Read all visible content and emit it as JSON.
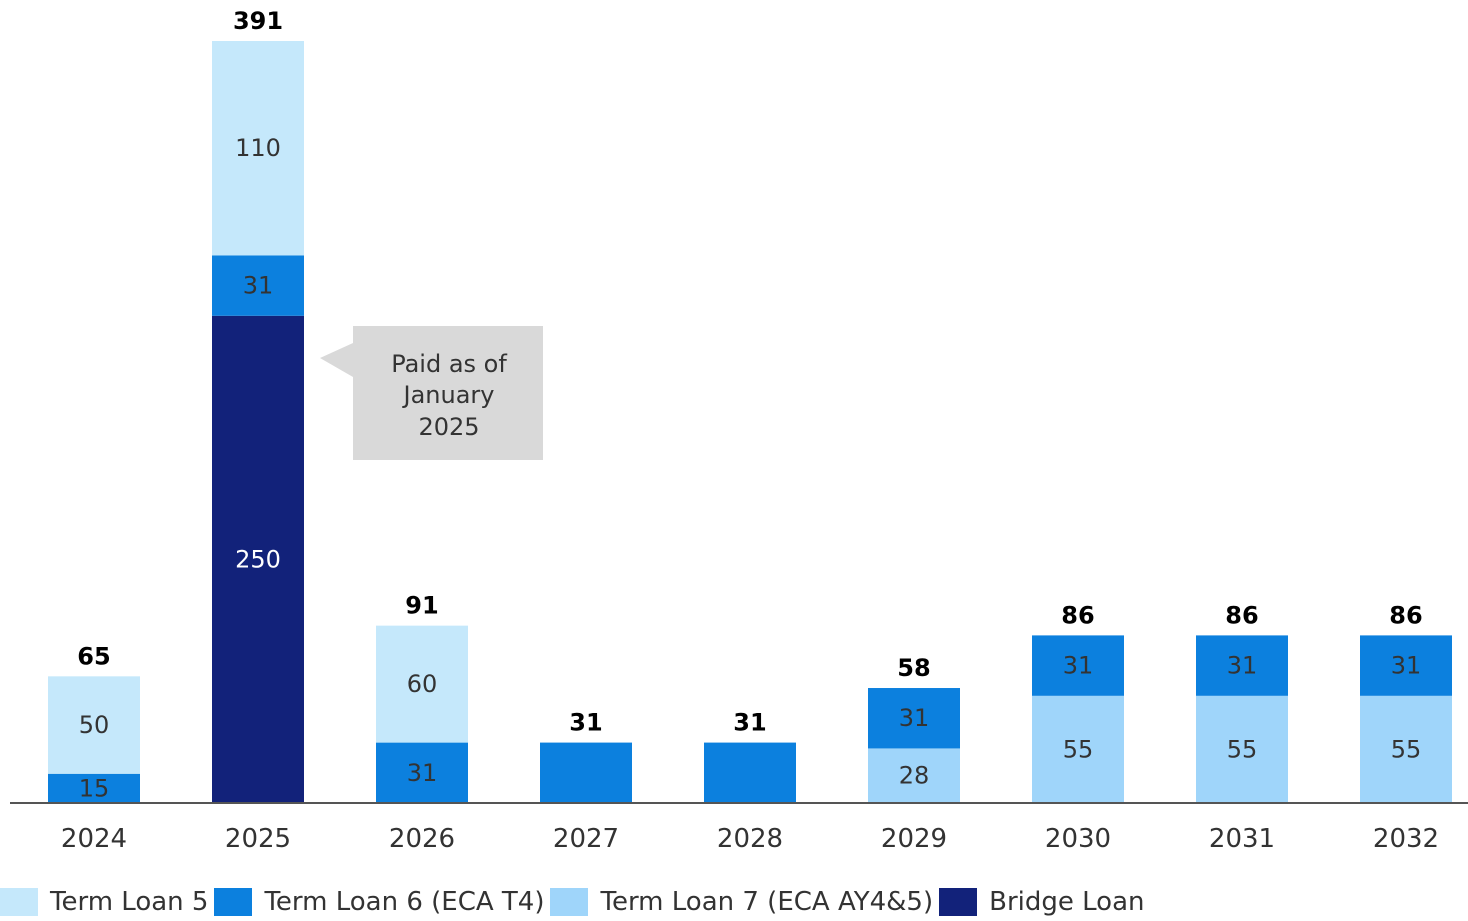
{
  "chart_data": {
    "type": "bar",
    "stacked": true,
    "categories": [
      "2024",
      "2025",
      "2026",
      "2027",
      "2028",
      "2029",
      "2030",
      "2031",
      "2032"
    ],
    "series": [
      {
        "name": "Bridge Loan",
        "color": "#12227a",
        "label_color": "#ffffff",
        "values": [
          0,
          250,
          0,
          0,
          0,
          0,
          0,
          0,
          0
        ]
      },
      {
        "name": "Term Loan 7 (ECA AY4&5)",
        "color": "#9fd5fa",
        "label_color": "#333333",
        "values": [
          0,
          0,
          0,
          0,
          0,
          28,
          55,
          55,
          55
        ]
      },
      {
        "name": "Term Loan 6 (ECA T4)",
        "color": "#0c80de",
        "label_color": "#333333",
        "values": [
          15,
          31,
          31,
          31,
          31,
          31,
          31,
          31,
          31
        ]
      },
      {
        "name": "Term Loan 5",
        "color": "#c5e8fb",
        "label_color": "#333333",
        "values": [
          50,
          110,
          60,
          0,
          0,
          0,
          0,
          0,
          0
        ]
      }
    ],
    "totals": [
      "65",
      "391",
      "91",
      "31",
      "31",
      "58",
      "86",
      "86",
      "86"
    ],
    "hidden_segment_labels": [
      "2027|Term Loan 6 (ECA T4)",
      "2028|Term Loan 6 (ECA T4)"
    ],
    "legend_order": [
      "Term Loan 5",
      "Term Loan 6 (ECA T4)",
      "Term Loan 7 (ECA AY4&5)",
      "Bridge Loan"
    ],
    "legend_position": "bottom-left",
    "ylim": [
      0,
      391
    ],
    "grid": false,
    "title": "",
    "xlabel": "",
    "ylabel": "",
    "annotation": {
      "lines": [
        "Paid as of",
        "January",
        "2025"
      ],
      "target": "2025|Bridge Loan"
    }
  }
}
